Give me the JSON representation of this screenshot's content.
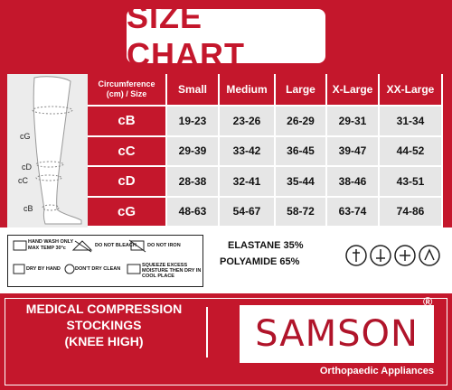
{
  "title": "SIZE CHART",
  "table": {
    "header": [
      "Circumference (cm) / Size",
      "Small",
      "Medium",
      "Large",
      "X-Large",
      "XX-Large"
    ],
    "rows": [
      [
        "cB",
        "19-23",
        "23-26",
        "26-29",
        "29-31",
        "31-34"
      ],
      [
        "cC",
        "29-39",
        "33-42",
        "36-45",
        "39-47",
        "44-52"
      ],
      [
        "cD",
        "28-38",
        "32-41",
        "35-44",
        "38-46",
        "43-51"
      ],
      [
        "cG",
        "48-63",
        "54-67",
        "58-72",
        "63-74",
        "74-86"
      ]
    ]
  },
  "diagram": {
    "labels": [
      "cG",
      "cD",
      "cC",
      "cB"
    ]
  },
  "care": [
    "HAND WASH ONLY",
    "MAX TEMP 30°c",
    "DO NOT BLEACH",
    "DO NOT IRON",
    "DRY BY HAND",
    "DON'T DRY CLEAN",
    "SQUEEZE EXCESS MOISTURE THEN DRY IN COOL PLACE"
  ],
  "composition": [
    "ELASTANE 35%",
    "POLYAMIDE 65%"
  ],
  "product": {
    "lines": [
      "MEDICAL COMPRESSION",
      "STOCKINGS",
      "(KNEE HIGH)"
    ]
  },
  "brand": {
    "name": "SAMSON",
    "mark": "®",
    "tagline": "Orthopaedic Appliances"
  }
}
